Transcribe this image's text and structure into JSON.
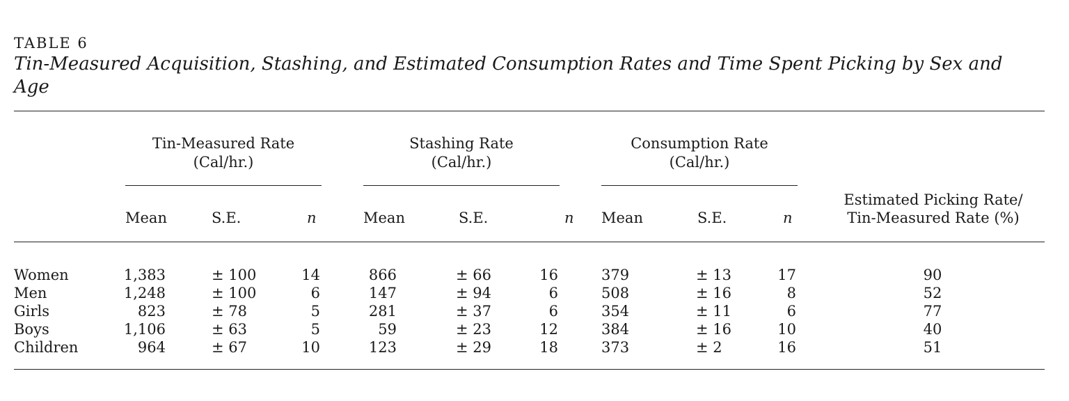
{
  "table_label": "TABLE 6",
  "title": "Tin-Measured Acquisition, Stashing, and Estimated Consumption Rates and Time Spent Picking by Sex and Age",
  "groups": [
    {
      "name": "Tin-Measured Rate",
      "unit": "(Cal/hr.)"
    },
    {
      "name": "Stashing Rate",
      "unit": "(Cal/hr.)"
    },
    {
      "name": "Consumption Rate",
      "unit": "(Cal/hr.)"
    }
  ],
  "subheaders": {
    "mean": "Mean",
    "se": "S.E.",
    "n": "n"
  },
  "last_column": {
    "line1": "Estimated Picking Rate/",
    "line2": "Tin-Measured Rate (%)"
  },
  "rows": [
    {
      "label": "Women",
      "tin": [
        "1,383",
        "± 100",
        "14"
      ],
      "stash": [
        "866",
        "± 66",
        "16"
      ],
      "cons": [
        "379",
        "± 13",
        "17"
      ],
      "pct": "90"
    },
    {
      "label": "Men",
      "tin": [
        "1,248",
        "± 100",
        "6"
      ],
      "stash": [
        "147",
        "± 94",
        "6"
      ],
      "cons": [
        "508",
        "± 16",
        "8"
      ],
      "pct": "52"
    },
    {
      "label": "Girls",
      "tin": [
        "823",
        "± 78",
        "5"
      ],
      "stash": [
        "281",
        "± 37",
        "6"
      ],
      "cons": [
        "354",
        "± 11",
        "6"
      ],
      "pct": "77"
    },
    {
      "label": "Boys",
      "tin": [
        "1,106",
        "± 63",
        "5"
      ],
      "stash": [
        "59",
        "± 23",
        "12"
      ],
      "cons": [
        "384",
        "± 16",
        "10"
      ],
      "pct": "40"
    },
    {
      "label": "Children",
      "tin": [
        "964",
        "± 67",
        "10"
      ],
      "stash": [
        "123",
        "± 29",
        "18"
      ],
      "cons": [
        "373",
        "± 2",
        "16"
      ],
      "pct": "51"
    }
  ]
}
